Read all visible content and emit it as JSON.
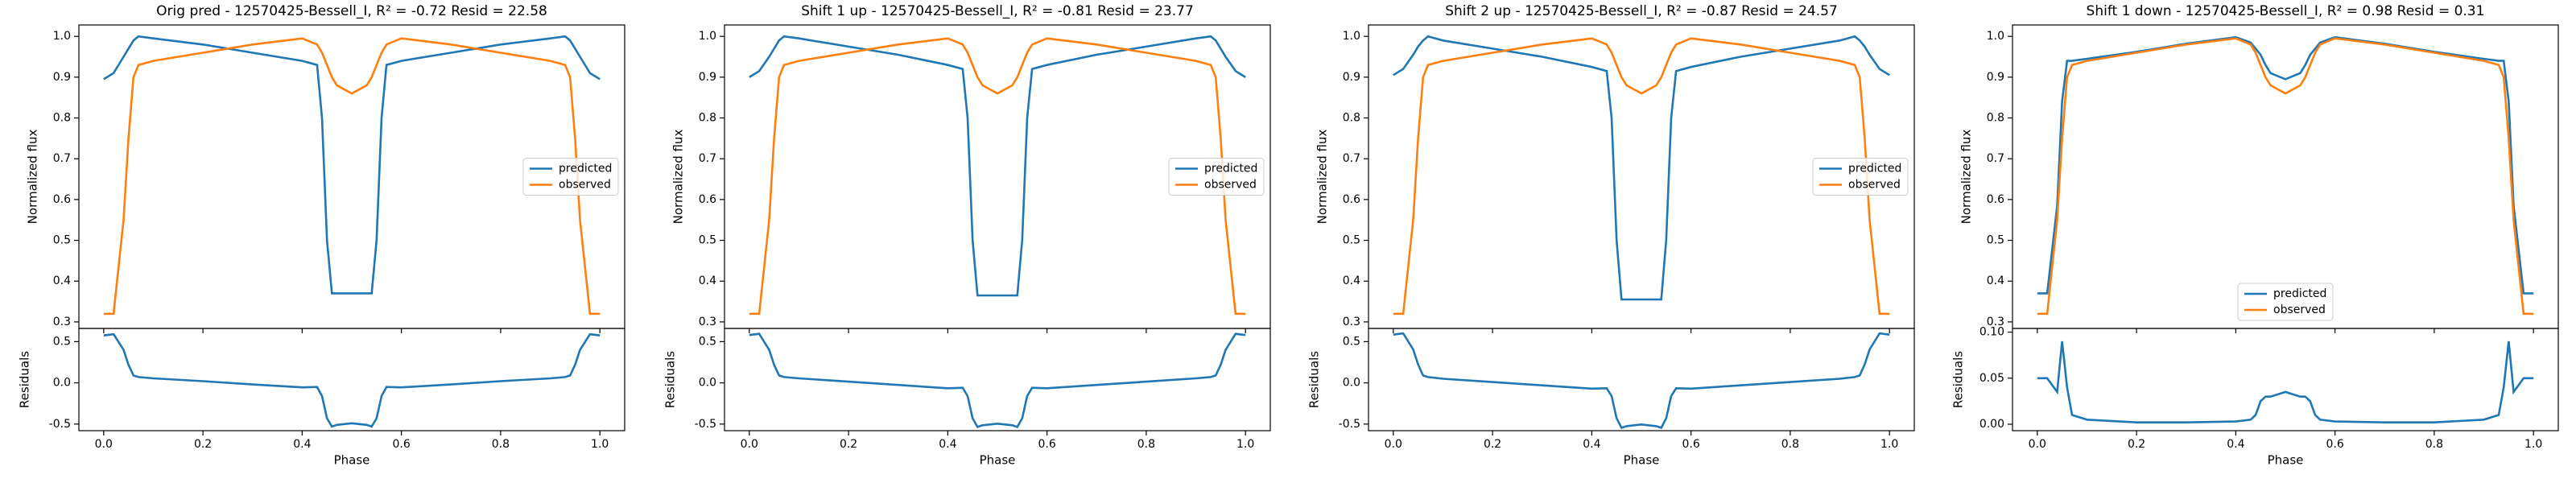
{
  "chart_data": [
    {
      "type": "line",
      "title": "Orig pred - 12570425-Bessell_I, R² = -0.72 Resid = 22.58",
      "ylabel": "Normalized flux",
      "legend": "center right",
      "x": [
        0,
        0.02,
        0.04,
        0.05,
        0.06,
        0.07,
        0.1,
        0.2,
        0.3,
        0.4,
        0.43,
        0.44,
        0.45,
        0.46,
        0.47,
        0.5,
        0.53,
        0.54,
        0.55,
        0.56,
        0.57,
        0.6,
        0.7,
        0.8,
        0.9,
        0.93,
        0.94,
        0.95,
        0.96,
        0.98,
        1.0
      ],
      "xlim": [
        -0.05,
        1.05
      ],
      "ylim": [
        0.284,
        1.028
      ],
      "yticks": [
        0.3,
        0.4,
        0.5,
        0.6,
        0.7,
        0.8,
        0.9,
        {
          "value": 1,
          "label": "1.0"
        }
      ],
      "series": [
        {
          "name": "predicted",
          "color": "#1f77b4",
          "values": [
            0.895,
            0.91,
            0.95,
            0.97,
            0.99,
            1.0,
            0.995,
            0.98,
            0.96,
            0.94,
            0.93,
            0.8,
            0.5,
            0.37,
            0.37,
            0.37,
            0.37,
            0.37,
            0.5,
            0.8,
            0.93,
            0.94,
            0.96,
            0.98,
            0.995,
            1.0,
            0.99,
            0.97,
            0.95,
            0.91,
            0.895
          ]
        },
        {
          "name": "observed",
          "color": "#ff7f0e",
          "values": [
            0.32,
            0.32,
            0.55,
            0.75,
            0.9,
            0.93,
            0.94,
            0.96,
            0.98,
            0.995,
            0.98,
            0.96,
            0.93,
            0.9,
            0.88,
            0.86,
            0.88,
            0.9,
            0.93,
            0.96,
            0.98,
            0.995,
            0.98,
            0.96,
            0.94,
            0.93,
            0.9,
            0.75,
            0.55,
            0.32,
            0.32
          ]
        }
      ],
      "residuals": {
        "ylabel": "Residuals",
        "xlabel": "Phase",
        "color": "#1f77b4",
        "ylim": [
          -0.58,
          0.66
        ],
        "yticks": [
          -0.5,
          {
            "value": 0,
            "label": "0.0"
          },
          0.5
        ],
        "xticks": [
          {
            "value": 0,
            "label": "0.0"
          },
          0.2,
          0.4,
          0.6,
          0.8,
          {
            "value": 1,
            "label": "1.0"
          }
        ],
        "values": [
          0.575,
          0.59,
          0.4,
          0.22,
          0.09,
          0.07,
          0.055,
          0.02,
          -0.02,
          -0.055,
          -0.05,
          -0.16,
          -0.43,
          -0.53,
          -0.51,
          -0.49,
          -0.51,
          -0.53,
          -0.43,
          -0.16,
          -0.05,
          -0.055,
          -0.02,
          0.02,
          0.055,
          0.07,
          0.09,
          0.22,
          0.4,
          0.59,
          0.575
        ]
      }
    },
    {
      "type": "line",
      "title": "Shift 1 up - 12570425-Bessell_I, R² = -0.81 Resid = 23.77",
      "ylabel": "Normalized flux",
      "legend": "center right",
      "x": [
        0,
        0.02,
        0.04,
        0.05,
        0.06,
        0.07,
        0.1,
        0.2,
        0.3,
        0.4,
        0.43,
        0.44,
        0.45,
        0.46,
        0.47,
        0.5,
        0.53,
        0.54,
        0.55,
        0.56,
        0.57,
        0.6,
        0.7,
        0.8,
        0.9,
        0.93,
        0.94,
        0.95,
        0.96,
        0.98,
        1.0
      ],
      "xlim": [
        -0.05,
        1.05
      ],
      "ylim": [
        0.284,
        1.028
      ],
      "yticks": [
        0.3,
        0.4,
        0.5,
        0.6,
        0.7,
        0.8,
        0.9,
        {
          "value": 1,
          "label": "1.0"
        }
      ],
      "series": [
        {
          "name": "predicted",
          "color": "#1f77b4",
          "values": [
            0.9,
            0.915,
            0.95,
            0.97,
            0.99,
            1.0,
            0.995,
            0.975,
            0.955,
            0.93,
            0.92,
            0.8,
            0.5,
            0.365,
            0.365,
            0.365,
            0.365,
            0.365,
            0.5,
            0.8,
            0.92,
            0.93,
            0.955,
            0.975,
            0.995,
            1.0,
            0.99,
            0.97,
            0.95,
            0.915,
            0.9
          ]
        },
        {
          "name": "observed",
          "color": "#ff7f0e",
          "values": [
            0.32,
            0.32,
            0.55,
            0.75,
            0.9,
            0.93,
            0.94,
            0.96,
            0.98,
            0.995,
            0.98,
            0.96,
            0.93,
            0.9,
            0.88,
            0.86,
            0.88,
            0.9,
            0.93,
            0.96,
            0.98,
            0.995,
            0.98,
            0.96,
            0.94,
            0.93,
            0.9,
            0.75,
            0.55,
            0.32,
            0.32
          ]
        }
      ],
      "residuals": {
        "ylabel": "Residuals",
        "xlabel": "Phase",
        "color": "#1f77b4",
        "ylim": [
          -0.58,
          0.66
        ],
        "yticks": [
          -0.5,
          {
            "value": 0,
            "label": "0.0"
          },
          0.5
        ],
        "xticks": [
          {
            "value": 0,
            "label": "0.0"
          },
          0.2,
          0.4,
          0.6,
          0.8,
          {
            "value": 1,
            "label": "1.0"
          }
        ],
        "values": [
          0.58,
          0.595,
          0.4,
          0.22,
          0.09,
          0.07,
          0.055,
          0.015,
          -0.025,
          -0.065,
          -0.06,
          -0.16,
          -0.43,
          -0.535,
          -0.515,
          -0.495,
          -0.515,
          -0.535,
          -0.43,
          -0.16,
          -0.06,
          -0.065,
          -0.025,
          0.015,
          0.055,
          0.07,
          0.09,
          0.22,
          0.4,
          0.595,
          0.58
        ]
      }
    },
    {
      "type": "line",
      "title": "Shift 2 up - 12570425-Bessell_I, R² = -0.87 Resid = 24.57",
      "ylabel": "Normalized flux",
      "legend": "center right",
      "x": [
        0,
        0.02,
        0.04,
        0.05,
        0.06,
        0.07,
        0.1,
        0.2,
        0.3,
        0.4,
        0.43,
        0.44,
        0.45,
        0.46,
        0.47,
        0.5,
        0.53,
        0.54,
        0.55,
        0.56,
        0.57,
        0.6,
        0.7,
        0.8,
        0.9,
        0.93,
        0.94,
        0.95,
        0.96,
        0.98,
        1.0
      ],
      "xlim": [
        -0.05,
        1.05
      ],
      "ylim": [
        0.284,
        1.028
      ],
      "yticks": [
        0.3,
        0.4,
        0.5,
        0.6,
        0.7,
        0.8,
        0.9,
        {
          "value": 1,
          "label": "1.0"
        }
      ],
      "series": [
        {
          "name": "predicted",
          "color": "#1f77b4",
          "values": [
            0.905,
            0.92,
            0.955,
            0.975,
            0.99,
            1.0,
            0.99,
            0.97,
            0.95,
            0.925,
            0.915,
            0.8,
            0.5,
            0.355,
            0.355,
            0.355,
            0.355,
            0.355,
            0.5,
            0.8,
            0.915,
            0.925,
            0.95,
            0.97,
            0.99,
            1.0,
            0.99,
            0.975,
            0.955,
            0.92,
            0.905
          ]
        },
        {
          "name": "observed",
          "color": "#ff7f0e",
          "values": [
            0.32,
            0.32,
            0.55,
            0.75,
            0.9,
            0.93,
            0.94,
            0.96,
            0.98,
            0.995,
            0.98,
            0.96,
            0.93,
            0.9,
            0.88,
            0.86,
            0.88,
            0.9,
            0.93,
            0.96,
            0.98,
            0.995,
            0.98,
            0.96,
            0.94,
            0.93,
            0.9,
            0.75,
            0.55,
            0.32,
            0.32
          ]
        }
      ],
      "residuals": {
        "ylabel": "Residuals",
        "xlabel": "Phase",
        "color": "#1f77b4",
        "ylim": [
          -0.58,
          0.66
        ],
        "yticks": [
          -0.5,
          {
            "value": 0,
            "label": "0.0"
          },
          0.5
        ],
        "xticks": [
          {
            "value": 0,
            "label": "0.0"
          },
          0.2,
          0.4,
          0.6,
          0.8,
          {
            "value": 1,
            "label": "1.0"
          }
        ],
        "values": [
          0.585,
          0.6,
          0.405,
          0.225,
          0.09,
          0.07,
          0.05,
          0.01,
          -0.03,
          -0.07,
          -0.065,
          -0.16,
          -0.43,
          -0.545,
          -0.525,
          -0.505,
          -0.525,
          -0.545,
          -0.43,
          -0.16,
          -0.065,
          -0.07,
          -0.03,
          0.01,
          0.05,
          0.07,
          0.09,
          0.225,
          0.405,
          0.6,
          0.585
        ]
      }
    },
    {
      "type": "line",
      "title": "Shift 1 down - 12570425-Bessell_I, R² = 0.98 Resid = 0.31",
      "ylabel": "Normalized flux",
      "legend": "lower center",
      "x": [
        0,
        0.02,
        0.04,
        0.05,
        0.06,
        0.07,
        0.1,
        0.2,
        0.3,
        0.4,
        0.43,
        0.44,
        0.45,
        0.46,
        0.47,
        0.5,
        0.53,
        0.54,
        0.55,
        0.56,
        0.57,
        0.6,
        0.7,
        0.8,
        0.9,
        0.93,
        0.94,
        0.95,
        0.96,
        0.98,
        1.0
      ],
      "xlim": [
        -0.05,
        1.05
      ],
      "ylim": [
        0.284,
        1.028
      ],
      "yticks": [
        0.3,
        0.4,
        0.5,
        0.6,
        0.7,
        0.8,
        0.9,
        {
          "value": 1,
          "label": "1.0"
        }
      ],
      "series": [
        {
          "name": "predicted",
          "color": "#1f77b4",
          "values": [
            0.37,
            0.37,
            0.585,
            0.84,
            0.94,
            0.94,
            0.945,
            0.962,
            0.982,
            0.998,
            0.985,
            0.97,
            0.955,
            0.93,
            0.91,
            0.895,
            0.91,
            0.93,
            0.955,
            0.97,
            0.985,
            0.998,
            0.982,
            0.962,
            0.945,
            0.94,
            0.94,
            0.84,
            0.585,
            0.37,
            0.37
          ]
        },
        {
          "name": "observed",
          "color": "#ff7f0e",
          "values": [
            0.32,
            0.32,
            0.55,
            0.75,
            0.9,
            0.93,
            0.94,
            0.96,
            0.98,
            0.995,
            0.98,
            0.96,
            0.93,
            0.9,
            0.88,
            0.86,
            0.88,
            0.9,
            0.93,
            0.96,
            0.98,
            0.995,
            0.98,
            0.96,
            0.94,
            0.93,
            0.9,
            0.75,
            0.55,
            0.32,
            0.32
          ]
        }
      ],
      "residuals": {
        "ylabel": "Residuals",
        "xlabel": "Phase",
        "color": "#1f77b4",
        "ylim": [
          -0.007,
          0.104
        ],
        "yticks": [
          {
            "value": 0,
            "label": "0.00"
          },
          {
            "value": 0.05,
            "label": "0.05"
          },
          {
            "value": 0.1,
            "label": "0.10"
          }
        ],
        "xticks": [
          {
            "value": 0,
            "label": "0.0"
          },
          0.2,
          0.4,
          0.6,
          0.8,
          {
            "value": 1,
            "label": "1.0"
          }
        ],
        "values": [
          0.05,
          0.05,
          0.035,
          0.09,
          0.04,
          0.01,
          0.005,
          0.002,
          0.002,
          0.003,
          0.005,
          0.01,
          0.025,
          0.03,
          0.03,
          0.035,
          0.03,
          0.03,
          0.025,
          0.01,
          0.005,
          0.003,
          0.002,
          0.002,
          0.005,
          0.01,
          0.04,
          0.09,
          0.035,
          0.05,
          0.05
        ]
      }
    }
  ]
}
